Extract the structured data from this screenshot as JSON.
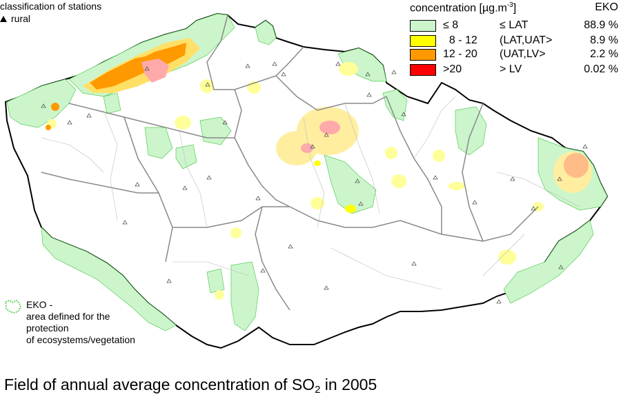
{
  "station_legend": {
    "title": "classification of stations",
    "item": "rural"
  },
  "concentration_legend": {
    "title": "concentration [µg.m",
    "unit_exponent": "-3",
    "unit_close": "]",
    "eko_header": "EKO",
    "rows": [
      {
        "range": "≤ 8",
        "limit": "≤ LAT",
        "pct": "88.9 %",
        "color": "#ccf5cc"
      },
      {
        "range": "  8 - 12",
        "limit": "(LAT,UAT>",
        "pct": "8.9 %",
        "color": "#ffff00"
      },
      {
        "range": "12 - 20",
        "limit": "(UAT,LV>",
        "pct": "2.2 %",
        "color": "#ff9900"
      },
      {
        "range": ">20",
        "limit": "> LV",
        "pct": "0.02 %",
        "color": "#ff0000"
      }
    ]
  },
  "eko_legend": {
    "line1": "EKO -",
    "line2": "area defined for the",
    "line3": "protection",
    "line4": "of ecosystems/vegetation",
    "border_color": "#33cc33"
  },
  "caption": {
    "prefix": "Field of annual average concentration of SO",
    "subscript": "2",
    "suffix": " in 2005"
  },
  "colors": {
    "eko_fill": "#ccf5cc",
    "pale_yellow": "#ffffb3",
    "yellow": "#ffff66",
    "light_orange": "#ffcc99",
    "orange": "#ff9900",
    "pink": "#ffaaaa",
    "border": "#000000",
    "region_border": "#888888"
  }
}
